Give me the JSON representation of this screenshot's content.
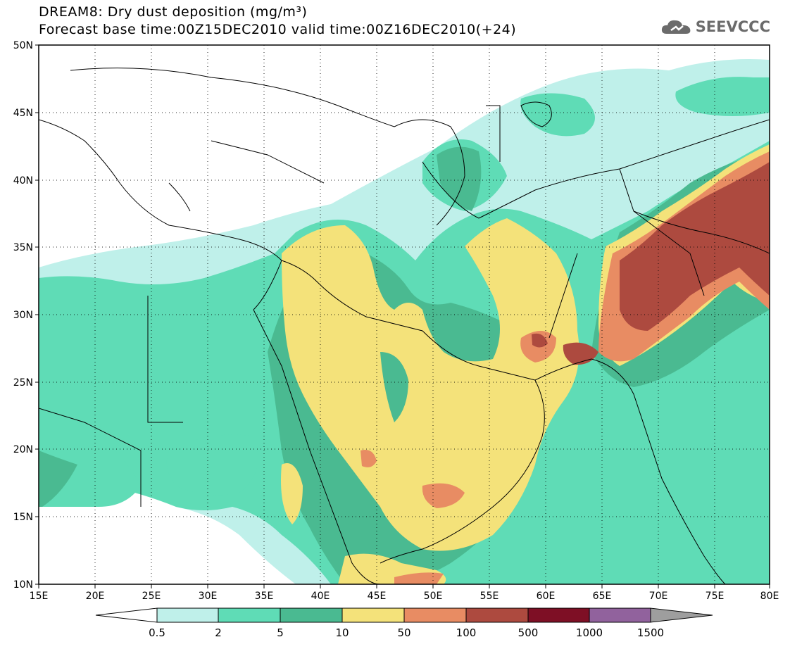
{
  "header": {
    "title_line1": "DREAM8: Dry dust deposition (mg/m³)",
    "title_line2": "Forecast base time:00Z15DEC2010 valid time:00Z16DEC2010(+24)",
    "logo_text": "SEEVCCC"
  },
  "axes": {
    "lat_ticks": [
      "50N",
      "45N",
      "40N",
      "35N",
      "30N",
      "25N",
      "20N",
      "15N",
      "10N"
    ],
    "lon_ticks": [
      "15E",
      "20E",
      "25E",
      "30E",
      "35E",
      "40E",
      "45E",
      "50E",
      "55E",
      "60E",
      "65E",
      "70E",
      "75E",
      "80E"
    ]
  },
  "legend": {
    "levels": [
      "0.5",
      "2",
      "5",
      "10",
      "50",
      "100",
      "500",
      "1000",
      "1500"
    ],
    "colors": [
      "#bff0ea",
      "#5fdcb6",
      "#4aba91",
      "#f4e27a",
      "#e88c63",
      "#ad4a3f",
      "#7e0f25",
      "#91629d"
    ],
    "under_color": "#ffffff",
    "over_color": "#9e9e9e"
  },
  "map_colors": {
    "c1": "#bff0ea",
    "c2": "#5fdcb6",
    "c3": "#4aba91",
    "c4": "#f4e27a",
    "c5": "#e88c63",
    "c6": "#ad4a3f"
  }
}
